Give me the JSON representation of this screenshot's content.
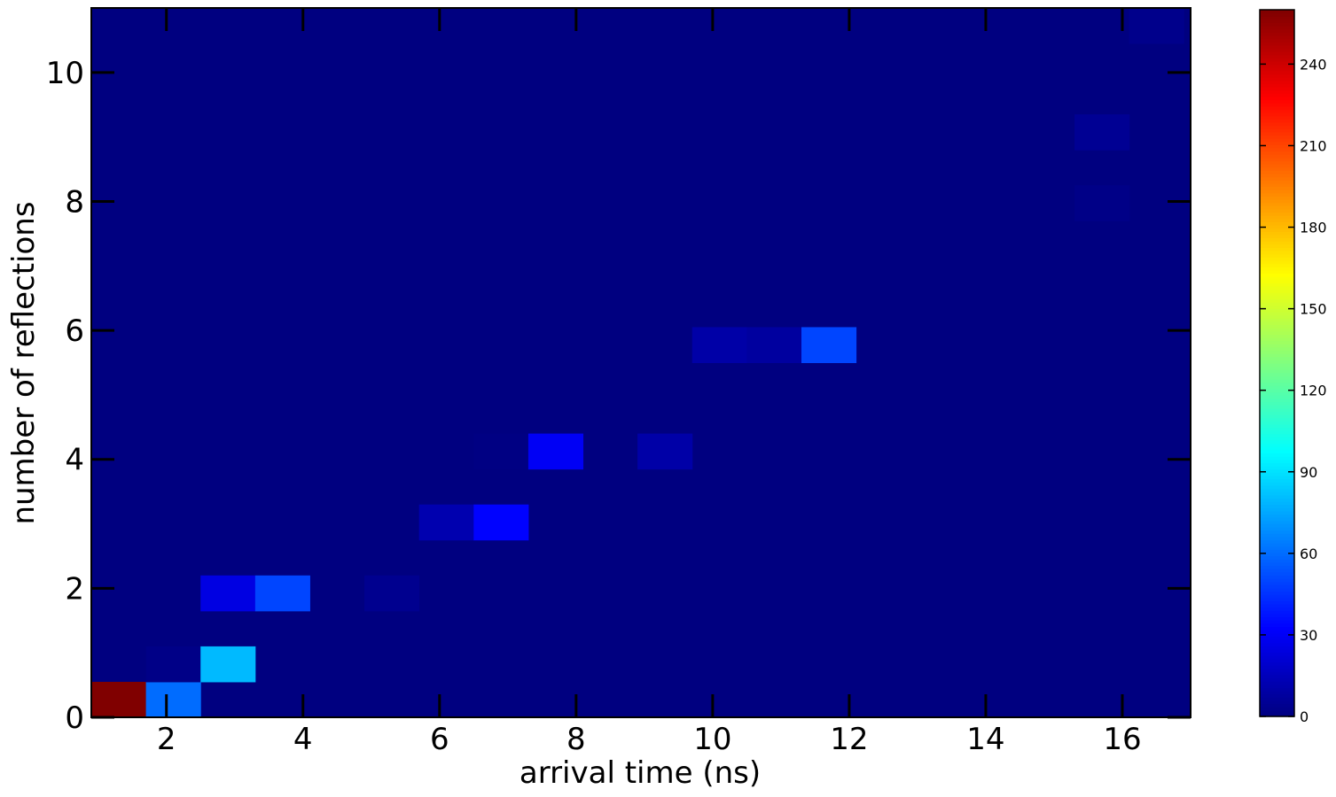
{
  "chart_data": {
    "type": "heatmap",
    "xlabel": "arrival time (ns)",
    "ylabel": "number of reflections",
    "xlim": [
      0.9,
      17.0
    ],
    "ylim": [
      0,
      11
    ],
    "xticks": [
      2,
      4,
      6,
      8,
      10,
      12,
      14,
      16
    ],
    "yticks": [
      0,
      2,
      4,
      6,
      8,
      10
    ],
    "x_bin_edges": [
      0.9,
      1.7,
      2.5,
      3.3,
      4.1,
      4.9,
      5.7,
      6.5,
      7.3,
      8.1,
      8.9,
      9.7,
      10.5,
      11.3,
      12.1,
      12.9,
      13.7,
      14.5,
      15.3,
      16.1,
      16.9
    ],
    "y_bin_edges": [
      0,
      0.55,
      1.1,
      1.65,
      2.2,
      2.75,
      3.3,
      3.85,
      4.4,
      4.95,
      5.5,
      6.05,
      6.6,
      7.15,
      7.7,
      8.25,
      8.8,
      9.35,
      9.9,
      10.45,
      11.0
    ],
    "cells": [
      {
        "x": 1,
        "y": 0.275,
        "value": 260
      },
      {
        "x": 2,
        "y": 0.275,
        "value": 60
      },
      {
        "x": 2,
        "y": 0.825,
        "value": 2
      },
      {
        "x": 3,
        "y": 0.825,
        "value": 80
      },
      {
        "x": 3,
        "y": 1.925,
        "value": 25
      },
      {
        "x": 4,
        "y": 1.925,
        "value": 50
      },
      {
        "x": 5,
        "y": 1.925,
        "value": 4
      },
      {
        "x": 6,
        "y": 3.025,
        "value": 12
      },
      {
        "x": 7,
        "y": 3.025,
        "value": 33
      },
      {
        "x": 7,
        "y": 4.125,
        "value": 1
      },
      {
        "x": 8,
        "y": 4.125,
        "value": 30
      },
      {
        "x": 9,
        "y": 4.125,
        "value": 10
      },
      {
        "x": 10,
        "y": 5.775,
        "value": 10
      },
      {
        "x": 11,
        "y": 5.775,
        "value": 8
      },
      {
        "x": 12,
        "y": 5.775,
        "value": 50
      },
      {
        "x": 16,
        "y": 7.975,
        "value": 2
      },
      {
        "x": 16,
        "y": 9.075,
        "value": 5
      },
      {
        "x": 20,
        "y": 10.725,
        "value": 3
      }
    ],
    "colorbar": {
      "colormap": "jet",
      "min": 0,
      "max": 260,
      "ticks": [
        0,
        30,
        60,
        90,
        120,
        150,
        180,
        210,
        240
      ]
    },
    "grid": false
  }
}
